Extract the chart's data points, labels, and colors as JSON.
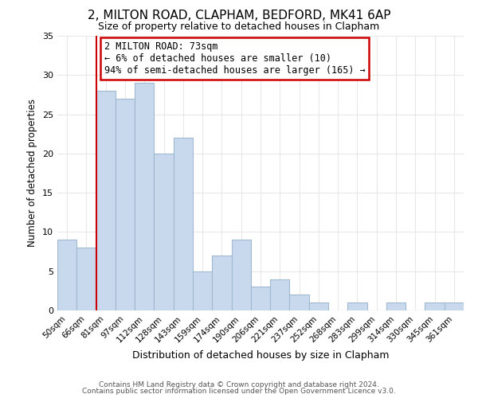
{
  "title": "2, MILTON ROAD, CLAPHAM, BEDFORD, MK41 6AP",
  "subtitle": "Size of property relative to detached houses in Clapham",
  "xlabel": "Distribution of detached houses by size in Clapham",
  "ylabel": "Number of detached properties",
  "bar_labels": [
    "50sqm",
    "66sqm",
    "81sqm",
    "97sqm",
    "112sqm",
    "128sqm",
    "143sqm",
    "159sqm",
    "174sqm",
    "190sqm",
    "206sqm",
    "221sqm",
    "237sqm",
    "252sqm",
    "268sqm",
    "283sqm",
    "299sqm",
    "314sqm",
    "330sqm",
    "345sqm",
    "361sqm"
  ],
  "bar_values": [
    9,
    8,
    28,
    27,
    29,
    20,
    22,
    5,
    7,
    9,
    3,
    4,
    2,
    1,
    0,
    1,
    0,
    1,
    0,
    1,
    1
  ],
  "bar_color": "#c8d9ed",
  "bar_edge_color": "#a0b8d0",
  "ylim": [
    0,
    35
  ],
  "yticks": [
    0,
    5,
    10,
    15,
    20,
    25,
    30,
    35
  ],
  "annotation_text": "2 MILTON ROAD: 73sqm\n← 6% of detached houses are smaller (10)\n94% of semi-detached houses are larger (165) →",
  "annotation_box_color": "#ffffff",
  "annotation_box_edge": "#cc0000",
  "property_line_color": "#cc0000",
  "footer_line1": "Contains HM Land Registry data © Crown copyright and database right 2024.",
  "footer_line2": "Contains public sector information licensed under the Open Government Licence v3.0.",
  "background_color": "#ffffff",
  "grid_color": "#e8e8e8"
}
